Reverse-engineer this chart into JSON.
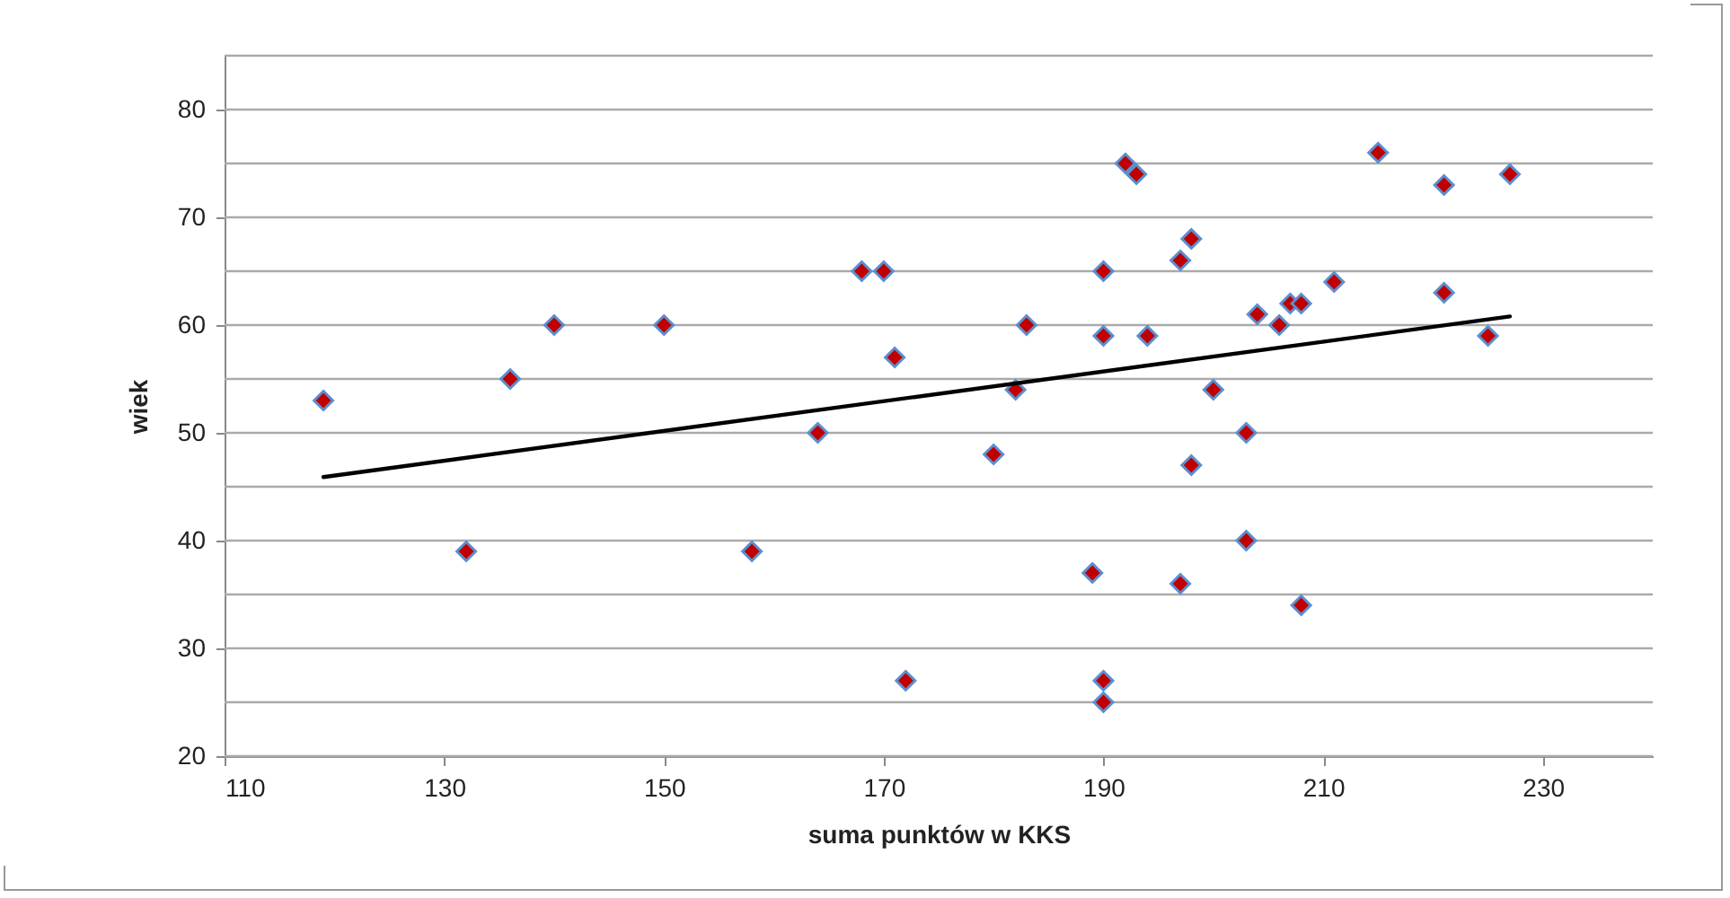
{
  "chart_data": {
    "type": "scatter",
    "xlabel": "suma punktów w KKS",
    "ylabel": "wiek",
    "xlim": [
      110,
      240
    ],
    "xticks": [
      110,
      130,
      150,
      170,
      190,
      210,
      230
    ],
    "ylim": [
      20,
      85
    ],
    "yticks": [
      20,
      {
        "value": 25,
        "label": null
      },
      30,
      {
        "value": 35,
        "label": null
      },
      40,
      {
        "value": 45,
        "label": null
      },
      50,
      {
        "value": 55,
        "label": null
      },
      60,
      {
        "value": 65,
        "label": null
      },
      70,
      {
        "value": 75,
        "label": null
      },
      80,
      {
        "value": 85,
        "label": null
      }
    ],
    "grid": "y",
    "marker": "diamond",
    "series": [
      {
        "color": "#c00000",
        "x": [
          119,
          132,
          136,
          140,
          150,
          158,
          164,
          168,
          170,
          171,
          172,
          180,
          182,
          183,
          189,
          190,
          190,
          190,
          190,
          192,
          193,
          194,
          197,
          197,
          198,
          198,
          200,
          203,
          203,
          204,
          206,
          207,
          208,
          208,
          211,
          215,
          221,
          221,
          225,
          227
        ],
        "values": [
          53,
          39,
          55,
          60,
          60,
          39,
          50,
          65,
          65,
          57,
          27,
          48,
          54,
          60,
          37,
          65,
          59,
          27,
          25,
          75,
          74,
          59,
          66,
          36,
          68,
          47,
          54,
          50,
          40,
          61,
          60,
          62,
          62,
          34,
          64,
          76,
          73,
          63,
          59,
          74
        ]
      },
      {
        "type": "line",
        "marker": "none",
        "color": "#000000",
        "x": [
          119,
          227
        ],
        "values": [
          45.9,
          60.8
        ]
      }
    ]
  }
}
